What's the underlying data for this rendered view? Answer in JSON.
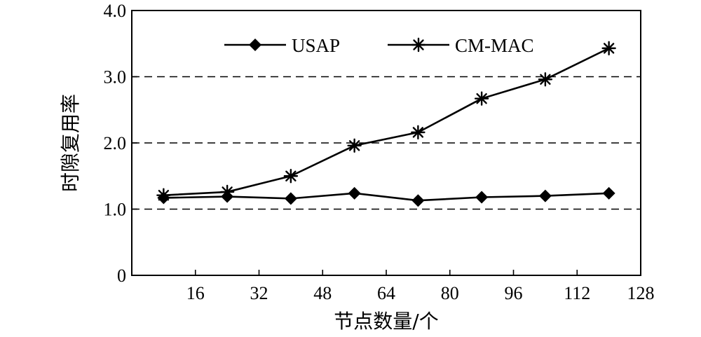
{
  "chart_data": {
    "type": "line",
    "xlabel": "节点数量/个",
    "ylabel": "时隙复用率",
    "xlim": [
      0,
      128
    ],
    "ylim": [
      0,
      4.0
    ],
    "x_ticks": [
      16,
      32,
      48,
      64,
      80,
      96,
      112,
      128
    ],
    "x_tick_labels": [
      "16",
      "32",
      "48",
      "64",
      "80",
      "96",
      "112",
      "128"
    ],
    "y_ticks": [
      0,
      1.0,
      2.0,
      3.0,
      4.0
    ],
    "y_tick_labels": [
      "0",
      "1.0",
      "2.0",
      "3.0",
      "4.0"
    ],
    "grid": "horizontal dashed at 1.0, 2.0, 3.0",
    "legend_position": "top",
    "series": [
      {
        "name": "USAP",
        "marker": "diamond",
        "x": [
          8,
          24,
          40,
          56,
          72,
          88,
          104,
          120
        ],
        "y": [
          1.17,
          1.19,
          1.16,
          1.24,
          1.13,
          1.18,
          1.2,
          1.24
        ]
      },
      {
        "name": "CM-MAC",
        "marker": "asterisk",
        "x": [
          8,
          24,
          40,
          56,
          72,
          88,
          104,
          120
        ],
        "y": [
          1.21,
          1.26,
          1.5,
          1.96,
          2.16,
          2.67,
          2.96,
          3.43
        ]
      }
    ]
  }
}
